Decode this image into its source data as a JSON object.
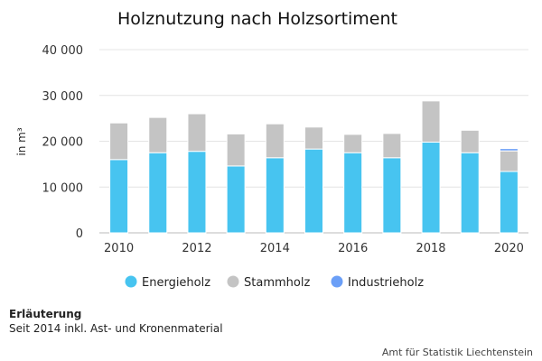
{
  "chart_data": {
    "type": "bar",
    "stacked": true,
    "title": "Holznutzung nach Holzsortiment",
    "ylabel": "in m³",
    "xlabel": "",
    "ylim": [
      0,
      40000
    ],
    "yticks": [
      0,
      10000,
      20000,
      30000,
      40000
    ],
    "ytick_labels": [
      "0",
      "10 000",
      "20 000",
      "30 000",
      "40 000"
    ],
    "xticks": [
      "2010",
      "2012",
      "2014",
      "2016",
      "2018",
      "2020"
    ],
    "categories": [
      2010,
      2011,
      2012,
      2013,
      2014,
      2015,
      2016,
      2017,
      2018,
      2019,
      2020
    ],
    "grid": true,
    "legend_position": "bottom",
    "series": [
      {
        "name": "Energieholz",
        "color": "#47c4f0",
        "values": [
          16000,
          17500,
          17800,
          14600,
          16400,
          18300,
          17500,
          16400,
          19800,
          17500,
          13400
        ]
      },
      {
        "name": "Stammholz",
        "color": "#c4c4c4",
        "values": [
          8000,
          7700,
          8200,
          7000,
          7400,
          4800,
          4000,
          5300,
          9000,
          4900,
          4500
        ]
      },
      {
        "name": "Industrieholz",
        "color": "#6b9ff7",
        "values": [
          0,
          0,
          0,
          0,
          0,
          0,
          0,
          0,
          0,
          0,
          500
        ]
      }
    ]
  },
  "note": {
    "title": "Erläuterung",
    "text": "Seit 2014 inkl. Ast- und Kronenmaterial"
  },
  "source": "Amt für Statistik Liechtenstein"
}
